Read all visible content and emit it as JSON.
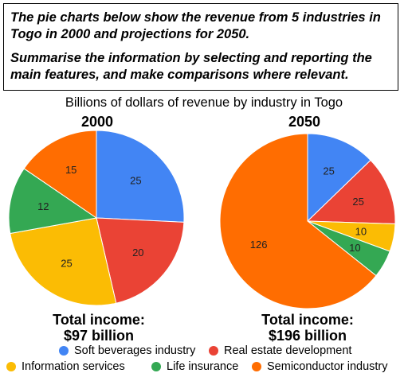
{
  "prompt": {
    "line1": "The pie charts below show the revenue from 5 industries in Togo in 2000 and projections for 2050.",
    "line2": "Summarise the information by selecting and reporting the main features, and make comparisons where relevant."
  },
  "chart_data": [
    {
      "type": "pie",
      "title": "Billions of dollars of revenue by industry in Togo",
      "subtitle": "2000",
      "total_label": "Total income:",
      "total_value": "$97 billion",
      "slices": [
        {
          "name": "Soft beverages industry",
          "value": 25,
          "color": "#4285F4"
        },
        {
          "name": "Real estate development",
          "value": 20,
          "color": "#EA4335"
        },
        {
          "name": "Information services",
          "value": 25,
          "color": "#FBBC04"
        },
        {
          "name": "Life insurance",
          "value": 12,
          "color": "#34A853"
        },
        {
          "name": "Semiconductor industry",
          "value": 15,
          "color": "#FF6D01"
        }
      ],
      "legend_position": "bottom"
    },
    {
      "type": "pie",
      "title": "Billions of dollars of revenue by industry in Togo",
      "subtitle": "2050",
      "total_label": "Total income:",
      "total_value": "$196 billion",
      "slices": [
        {
          "name": "Soft beverages industry",
          "value": 25,
          "color": "#4285F4"
        },
        {
          "name": "Real estate development",
          "value": 25,
          "color": "#EA4335"
        },
        {
          "name": "Information services",
          "value": 10,
          "color": "#FBBC04"
        },
        {
          "name": "Life insurance",
          "value": 10,
          "color": "#34A853"
        },
        {
          "name": "Semiconductor industry",
          "value": 126,
          "color": "#FF6D01"
        }
      ],
      "legend_position": "bottom"
    }
  ],
  "legend": [
    {
      "label": "Soft beverages industry",
      "color": "#4285F4"
    },
    {
      "label": "Real estate development",
      "color": "#EA4335"
    },
    {
      "label": "Information services",
      "color": "#FBBC04"
    },
    {
      "label": "Life insurance",
      "color": "#34A853"
    },
    {
      "label": "Semiconductor industry",
      "color": "#FF6D01"
    }
  ]
}
